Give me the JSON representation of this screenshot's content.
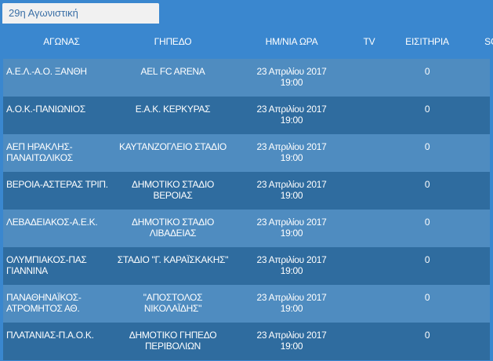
{
  "tab": {
    "label": "29η Αγωνιστική"
  },
  "headers": {
    "match": "ΑΓΩΝΑΣ",
    "venue": "ΓΗΠΕΔΟ",
    "datetime": "ΗΜ/ΝΙΑ ΩΡΑ",
    "tv": "TV",
    "tickets": "ΕΙΣΙΤΗΡΙΑ",
    "score": "SCORE"
  },
  "rows": [
    {
      "match": "Α.Ε.Λ.-Α.Ο. ΞΑΝΘΗ",
      "venue": "AEL FC ARENA",
      "date": "23 Απριλίου 2017",
      "time": "19:00",
      "tv": "",
      "tickets": "0",
      "score": "-"
    },
    {
      "match": "Α.Ο.Κ.-ΠΑΝΙΩΝΙΟΣ",
      "venue": "Ε.Α.Κ. ΚΕΡΚΥΡΑΣ",
      "date": "23 Απριλίου 2017",
      "time": "19:00",
      "tv": "",
      "tickets": "0",
      "score": "-"
    },
    {
      "match": "ΑΕΠ ΗΡΑΚΛΗΣ-ΠΑΝΑΙΤΩΛΙΚΟΣ",
      "venue": "ΚΑΥΤΑΝΖΟΓΛΕΙΟ ΣΤΑΔΙΟ",
      "date": "23 Απριλίου 2017",
      "time": "19:00",
      "tv": "",
      "tickets": "0",
      "score": "-"
    },
    {
      "match": "ΒΕΡΟΙΑ-ΑΣΤΕΡΑΣ ΤΡΙΠ.",
      "venue": "ΔΗΜΟΤΙΚΟ ΣΤΑΔΙΟ ΒΕΡΟΙΑΣ",
      "date": "23 Απριλίου 2017",
      "time": "19:00",
      "tv": "",
      "tickets": "0",
      "score": "-"
    },
    {
      "match": "ΛΕΒΑΔΕΙΑΚΟΣ-Α.Ε.Κ.",
      "venue": "ΔΗΜΟΤΙΚΟ ΣΤΑΔΙΟ ΛΙΒΑΔΕΙΑΣ",
      "date": "23 Απριλίου 2017",
      "time": "19:00",
      "tv": "",
      "tickets": "0",
      "score": "-"
    },
    {
      "match": "ΟΛΥΜΠΙΑΚΟΣ-ΠΑΣ ΓΙΑΝΝΙΝΑ",
      "venue": "ΣΤΑΔΙΟ \"Γ. ΚΑΡΑΪΣΚΑΚΗΣ\"",
      "date": "23 Απριλίου 2017",
      "time": "19:00",
      "tv": "",
      "tickets": "0",
      "score": "-"
    },
    {
      "match": "ΠΑΝΑΘΗΝΑΪΚΟΣ-ΑΤΡΟΜΗΤΟΣ ΑΘ.",
      "venue": "\"ΑΠΟΣΤΟΛΟΣ ΝΙΚΟΛΑΪΔΗΣ\"",
      "date": "23 Απριλίου 2017",
      "time": "19:00",
      "tv": "",
      "tickets": "0",
      "score": "-"
    },
    {
      "match": "ΠΛΑΤΑΝΙΑΣ-Π.Α.Ο.Κ.",
      "venue": "ΔΗΜΟΤΙΚΟ ΓΗΠΕΔΟ ΠΕΡΙΒΟΛΙΩΝ",
      "date": "23 Απριλίου 2017",
      "time": "19:00",
      "tv": "",
      "tickets": "0",
      "score": "-"
    }
  ]
}
